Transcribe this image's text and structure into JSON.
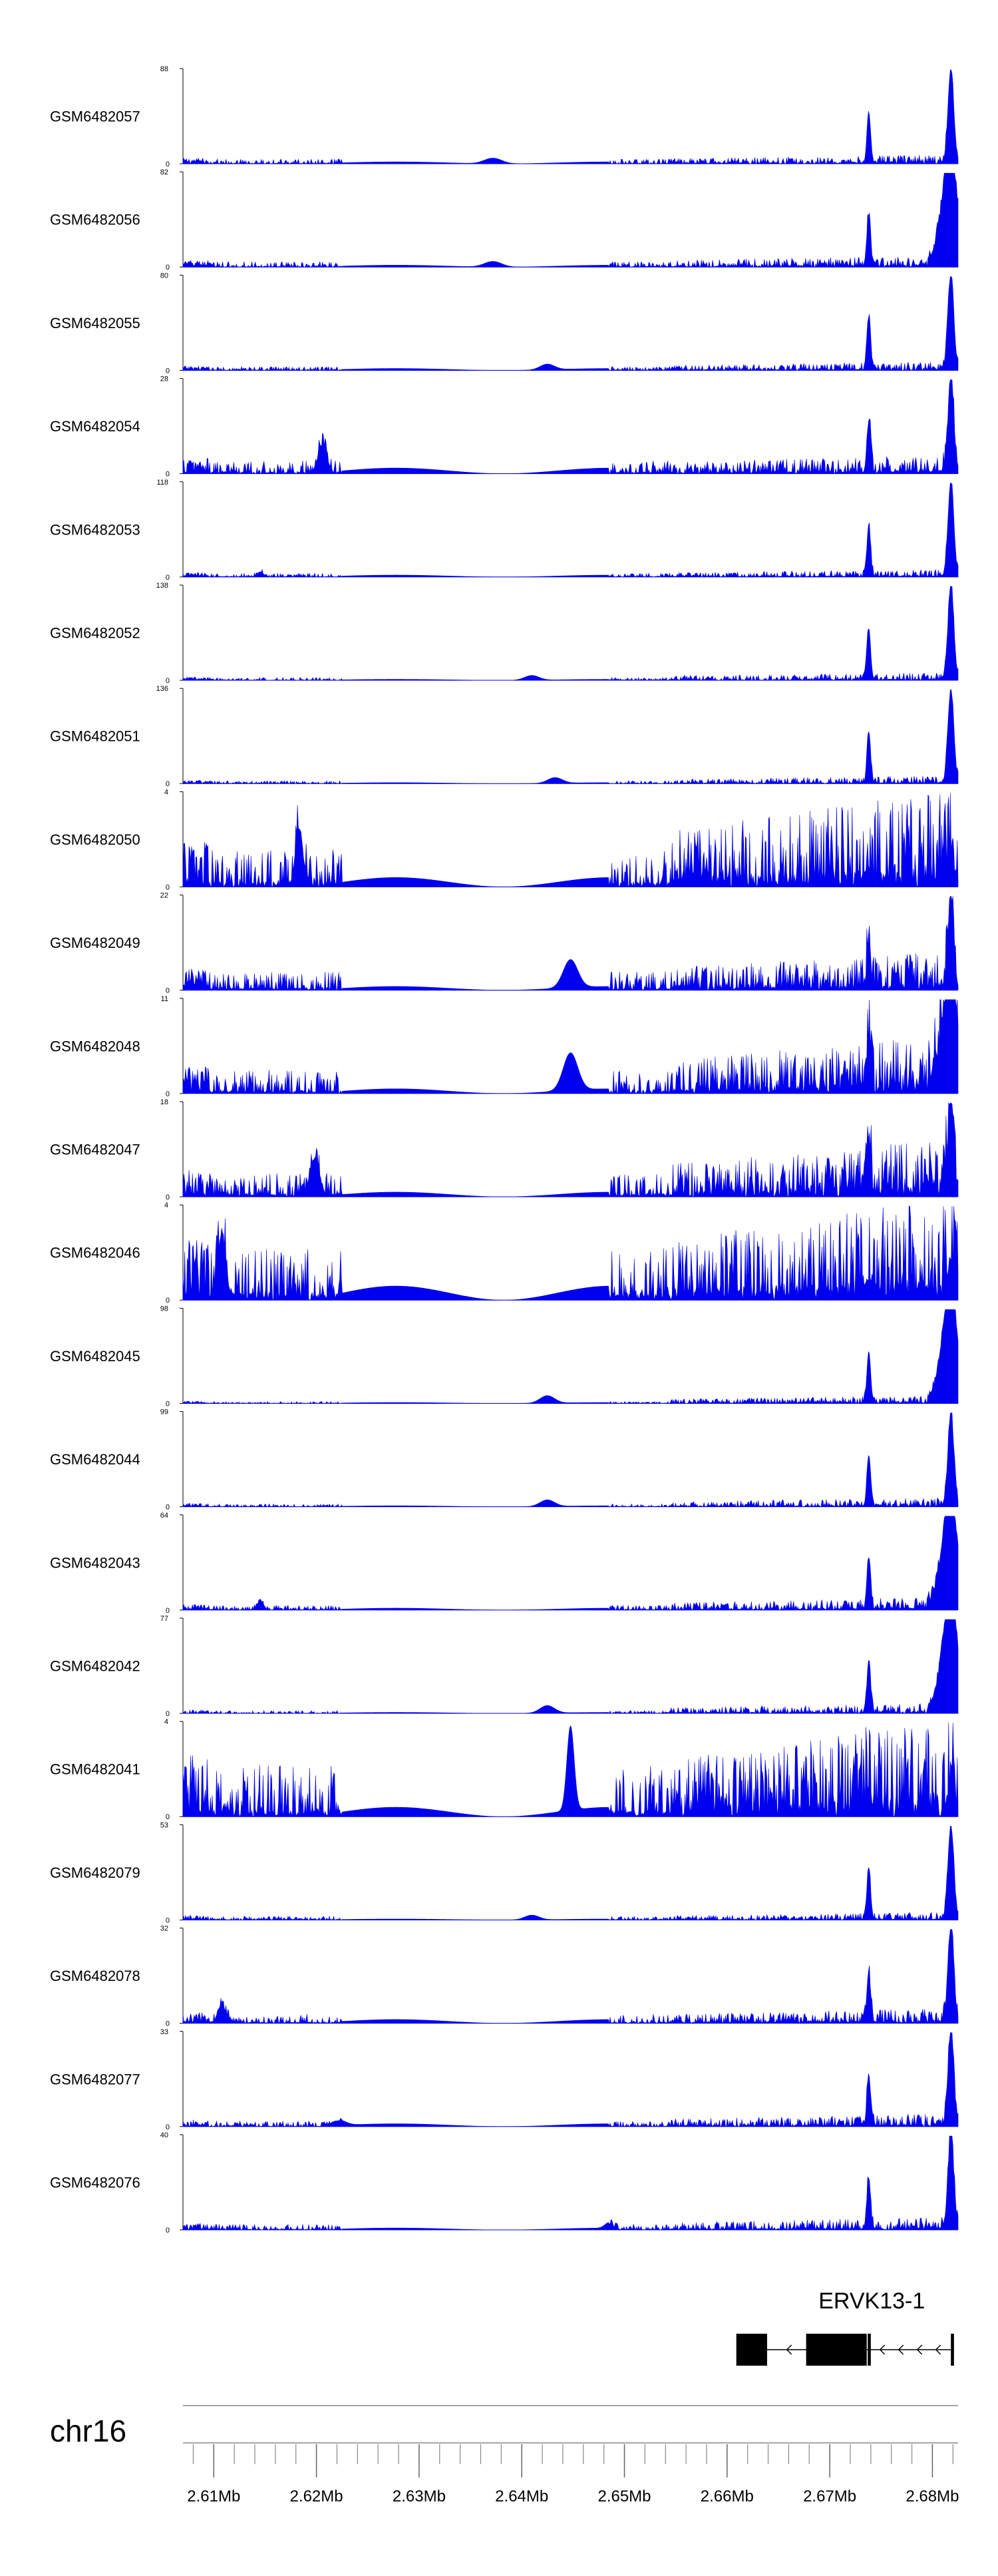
{
  "chart_data": {
    "type": "area",
    "fill_color": "#0000ee",
    "x_range_mb": [
      2.607,
      2.6825
    ],
    "tracks": [
      {
        "name": "GSM6482057",
        "ymax": 88,
        "peak_profile": "sharp",
        "noise": 0.07,
        "left_noise": 0.05,
        "gap_level": 0.02,
        "bump": [
          0.4,
          0.06,
          0.12
        ]
      },
      {
        "name": "GSM6482056",
        "ymax": 82,
        "peak_profile": "broad",
        "noise": 0.09,
        "left_noise": 0.06,
        "gap_level": 0.02,
        "bump": [
          0.4,
          0.06,
          0.12
        ]
      },
      {
        "name": "GSM6482055",
        "ymax": 80,
        "peak_profile": "sharp",
        "noise": 0.07,
        "left_noise": 0.04,
        "gap_level": 0.02,
        "bump": [
          0.47,
          0.06,
          0.1
        ]
      },
      {
        "name": "GSM6482054",
        "ymax": 28,
        "peak_profile": "sharp",
        "noise": 0.15,
        "left_noise": 0.14,
        "gap_level": 0.06,
        "bump": [
          0.18,
          0.3,
          0.06
        ]
      },
      {
        "name": "GSM6482053",
        "ymax": 118,
        "peak_profile": "sharp",
        "noise": 0.06,
        "left_noise": 0.04,
        "gap_level": 0.02,
        "bump": [
          0.1,
          0.05,
          0.04
        ]
      },
      {
        "name": "GSM6482052",
        "ymax": 138,
        "peak_profile": "sharp",
        "noise": 0.06,
        "left_noise": 0.03,
        "gap_level": 0.01,
        "bump": [
          0.45,
          0.05,
          0.1
        ]
      },
      {
        "name": "GSM6482051",
        "ymax": 136,
        "peak_profile": "sharp",
        "noise": 0.06,
        "left_noise": 0.03,
        "gap_level": 0.01,
        "bump": [
          0.48,
          0.06,
          0.1
        ]
      },
      {
        "name": "GSM6482050",
        "ymax": 4,
        "peak_profile": "flat",
        "noise": 0.75,
        "left_noise": 0.4,
        "gap_level": 0.1,
        "bump": [
          0.15,
          0.6,
          0.05
        ]
      },
      {
        "name": "GSM6482049",
        "ymax": 22,
        "peak_profile": "sharp",
        "noise": 0.3,
        "left_noise": 0.2,
        "gap_level": 0.04,
        "bump": [
          0.5,
          0.3,
          0.1
        ]
      },
      {
        "name": "GSM6482048",
        "ymax": 11,
        "peak_profile": "broad",
        "noise": 0.45,
        "left_noise": 0.25,
        "gap_level": 0.05,
        "bump": [
          0.5,
          0.4,
          0.1
        ]
      },
      {
        "name": "GSM6482047",
        "ymax": 18,
        "peak_profile": "sharp",
        "noise": 0.45,
        "left_noise": 0.25,
        "gap_level": 0.05,
        "bump": [
          0.17,
          0.4,
          0.06
        ]
      },
      {
        "name": "GSM6482046",
        "ymax": 4,
        "peak_profile": "flat",
        "noise": 0.8,
        "left_noise": 0.55,
        "gap_level": 0.15,
        "bump": [
          0.05,
          0.7,
          0.05
        ]
      },
      {
        "name": "GSM6482045",
        "ymax": 98,
        "peak_profile": "broad",
        "noise": 0.06,
        "left_noise": 0.02,
        "gap_level": 0.01,
        "bump": [
          0.47,
          0.08,
          0.1
        ]
      },
      {
        "name": "GSM6482044",
        "ymax": 99,
        "peak_profile": "sharp",
        "noise": 0.07,
        "left_noise": 0.03,
        "gap_level": 0.01,
        "bump": [
          0.47,
          0.07,
          0.1
        ]
      },
      {
        "name": "GSM6482043",
        "ymax": 64,
        "peak_profile": "broad",
        "noise": 0.1,
        "left_noise": 0.05,
        "gap_level": 0.02,
        "bump": [
          0.1,
          0.1,
          0.04
        ]
      },
      {
        "name": "GSM6482042",
        "ymax": 77,
        "peak_profile": "broad",
        "noise": 0.08,
        "left_noise": 0.03,
        "gap_level": 0.01,
        "bump": [
          0.47,
          0.08,
          0.1
        ]
      },
      {
        "name": "GSM6482041",
        "ymax": 4,
        "peak_profile": "flat",
        "noise": 0.75,
        "left_noise": 0.55,
        "gap_level": 0.1,
        "bump": [
          0.5,
          0.9,
          0.05
        ]
      },
      {
        "name": "GSM6482079",
        "ymax": 53,
        "peak_profile": "sharp",
        "noise": 0.06,
        "left_noise": 0.04,
        "gap_level": 0.01,
        "bump": [
          0.45,
          0.05,
          0.1
        ]
      },
      {
        "name": "GSM6482078",
        "ymax": 32,
        "peak_profile": "sharp",
        "noise": 0.12,
        "left_noise": 0.1,
        "gap_level": 0.04,
        "bump": [
          0.05,
          0.2,
          0.05
        ]
      },
      {
        "name": "GSM6482077",
        "ymax": 33,
        "peak_profile": "sharp",
        "noise": 0.1,
        "left_noise": 0.06,
        "gap_level": 0.03,
        "bump": [
          0.2,
          0.06,
          0.1
        ]
      },
      {
        "name": "GSM6482076",
        "ymax": 40,
        "peak_profile": "sharp",
        "noise": 0.1,
        "left_noise": 0.06,
        "gap_level": 0.02,
        "bump": [
          0.55,
          0.06,
          0.06
        ]
      }
    ],
    "peaks_mb": [
      {
        "pos": 2.6738,
        "height": 0.55,
        "width": 0.00025
      },
      {
        "pos": 2.6818,
        "height": 1.0,
        "width": 0.0004
      }
    ],
    "gene": {
      "name": "ERVK13-1",
      "strand": "-",
      "exons_mb": [
        [
          2.6609,
          2.6639
        ],
        [
          2.6677,
          2.6736
        ],
        [
          2.6737,
          2.674
        ],
        [
          2.6818,
          2.6821
        ]
      ]
    },
    "chromosome": "chr16",
    "x_ticks_mb": [
      2.61,
      2.62,
      2.63,
      2.64,
      2.65,
      2.66,
      2.67,
      2.68
    ],
    "x_tick_labels": [
      "2.61Mb",
      "2.62Mb",
      "2.63Mb",
      "2.64Mb",
      "2.65Mb",
      "2.66Mb",
      "2.67Mb",
      "2.68Mb"
    ],
    "minor_tick_step_mb": 0.002
  }
}
